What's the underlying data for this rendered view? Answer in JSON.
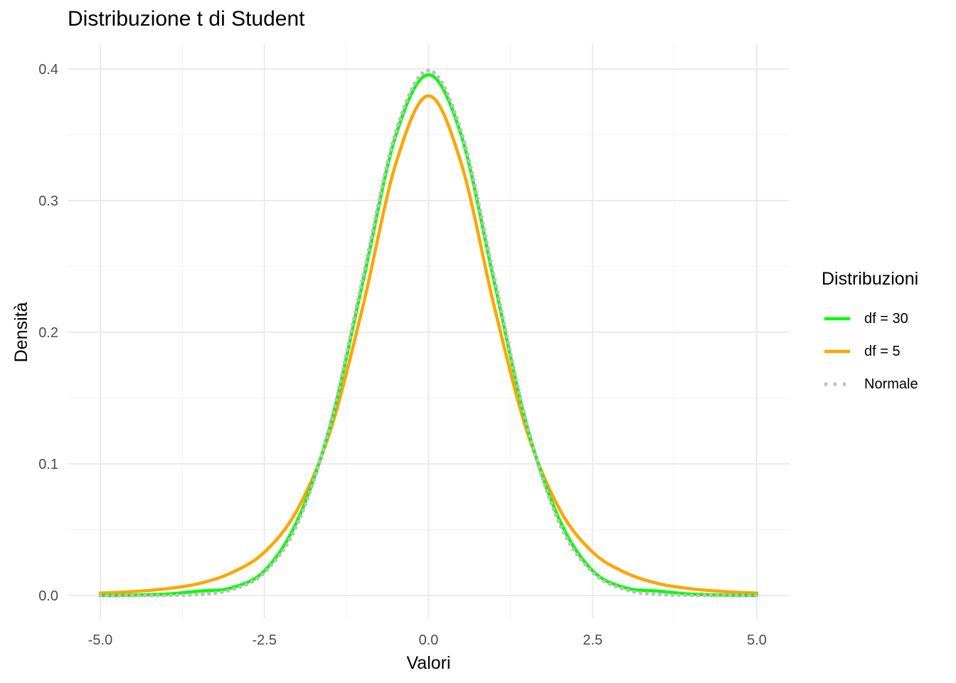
{
  "chart_data": {
    "type": "line",
    "title": "Distribuzione t di Student",
    "xlabel": "Valori",
    "ylabel": "Densità",
    "xlim": [
      -5.0,
      5.0
    ],
    "ylim": [
      0.0,
      0.4
    ],
    "x_ticks": [
      -5.0,
      -2.5,
      0.0,
      2.5,
      5.0
    ],
    "x_tick_labels": [
      "-5.0",
      "-2.5",
      "0.0",
      "2.5",
      "5.0"
    ],
    "y_ticks": [
      0.0,
      0.1,
      0.2,
      0.3,
      0.4
    ],
    "y_tick_labels": [
      "0.0",
      "0.1",
      "0.2",
      "0.3",
      "0.4"
    ],
    "grid": true,
    "legend": {
      "title": "Distribuzioni",
      "position": "right"
    },
    "x": [
      -5.0,
      -4.5,
      -4.0,
      -3.5,
      -3.0,
      -2.5,
      -2.0,
      -1.5,
      -1.0,
      -0.5,
      0.0,
      0.5,
      1.0,
      1.5,
      2.0,
      2.5,
      3.0,
      3.5,
      4.0,
      4.5,
      5.0
    ],
    "series": [
      {
        "name": "df = 30",
        "color": "#00ff00",
        "linestyle": "solid",
        "values": [
          0.0001,
          0.0003,
          0.001,
          0.0033,
          0.0058,
          0.0187,
          0.0567,
          0.1286,
          0.2385,
          0.3494,
          0.3956,
          0.3494,
          0.2385,
          0.1286,
          0.0567,
          0.0187,
          0.0058,
          0.0033,
          0.001,
          0.0003,
          0.0001
        ]
      },
      {
        "name": "df = 5",
        "color": "#ffa500",
        "linestyle": "solid",
        "values": [
          0.0018,
          0.003,
          0.0051,
          0.009,
          0.0173,
          0.0329,
          0.0651,
          0.1245,
          0.2197,
          0.3279,
          0.3796,
          0.3279,
          0.2197,
          0.1245,
          0.0651,
          0.0329,
          0.0173,
          0.009,
          0.0051,
          0.003,
          0.0018
        ]
      },
      {
        "name": "Normale",
        "color": "#bebebe",
        "linestyle": "dotted",
        "values": [
          0.0,
          0.0,
          0.0001,
          0.0009,
          0.0044,
          0.0175,
          0.054,
          0.1295,
          0.242,
          0.3521,
          0.3989,
          0.3521,
          0.242,
          0.1295,
          0.054,
          0.0175,
          0.0044,
          0.0009,
          0.0001,
          0.0,
          0.0
        ]
      }
    ]
  }
}
